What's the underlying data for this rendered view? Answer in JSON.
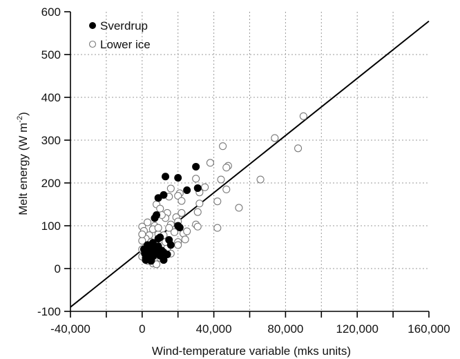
{
  "chart_data": {
    "type": "scatter",
    "xlabel": "Wind-temperature variable (mks units)",
    "ylabel": "Melt energy (W m",
    "ylabel_sup": "-2",
    "ylabel_close": ")",
    "xlim": [
      -40000,
      160000
    ],
    "ylim": [
      -100,
      600
    ],
    "xticks": [
      -40000,
      -20000,
      0,
      20000,
      40000,
      60000,
      80000,
      100000,
      120000,
      140000,
      160000
    ],
    "xtick_labels": [
      "-40,000",
      "",
      "0",
      "",
      "40,000",
      "",
      "80,000",
      "",
      "120,000",
      "",
      "160,000"
    ],
    "yticks": [
      -100,
      0,
      100,
      200,
      300,
      400,
      500,
      600
    ],
    "ytick_labels": [
      "-100",
      "0",
      "100",
      "200",
      "300",
      "400",
      "500",
      "600"
    ],
    "grid": true,
    "legend_position": "top-left",
    "fit_line": {
      "x": [
        -40000,
        160000
      ],
      "y": [
        -90,
        578
      ]
    },
    "series": [
      {
        "name": "Sverdrup",
        "marker": "filled-circle",
        "color": "#000000",
        "points": [
          [
            13000,
            215
          ],
          [
            30000,
            238
          ],
          [
            20000,
            212
          ],
          [
            9000,
            165
          ],
          [
            12000,
            172
          ],
          [
            31000,
            188
          ],
          [
            25000,
            183
          ],
          [
            8000,
            125
          ],
          [
            7000,
            118
          ],
          [
            20000,
            100
          ],
          [
            21000,
            96
          ],
          [
            10000,
            73
          ],
          [
            15000,
            67
          ],
          [
            9000,
            70
          ],
          [
            3000,
            55
          ],
          [
            5000,
            48
          ],
          [
            7000,
            45
          ],
          [
            4000,
            38
          ],
          [
            10000,
            30
          ],
          [
            12000,
            38
          ],
          [
            14000,
            33
          ],
          [
            2000,
            25
          ],
          [
            4000,
            22
          ],
          [
            2000,
            20
          ],
          [
            8000,
            35
          ],
          [
            11000,
            42
          ],
          [
            6000,
            28
          ],
          [
            16000,
            55
          ],
          [
            1000,
            45
          ],
          [
            3000,
            30
          ],
          [
            6000,
            60
          ],
          [
            9000,
            52
          ],
          [
            1500,
            35
          ],
          [
            12000,
            20
          ],
          [
            5000,
            18
          ]
        ]
      },
      {
        "name": "Lower ice",
        "marker": "open-circle",
        "color": "#000000",
        "points": [
          [
            90000,
            356
          ],
          [
            74000,
            305
          ],
          [
            87000,
            281
          ],
          [
            45000,
            286
          ],
          [
            48000,
            240
          ],
          [
            47000,
            236
          ],
          [
            38000,
            247
          ],
          [
            44000,
            208
          ],
          [
            66000,
            208
          ],
          [
            47000,
            185
          ],
          [
            35000,
            190
          ],
          [
            42000,
            157
          ],
          [
            54000,
            142
          ],
          [
            32000,
            178
          ],
          [
            30000,
            210
          ],
          [
            32000,
            152
          ],
          [
            31000,
            132
          ],
          [
            30000,
            103
          ],
          [
            31000,
            98
          ],
          [
            42000,
            95
          ],
          [
            21000,
            176
          ],
          [
            20000,
            170
          ],
          [
            22000,
            158
          ],
          [
            16000,
            187
          ],
          [
            8000,
            150
          ],
          [
            15000,
            168
          ],
          [
            10000,
            140
          ],
          [
            14000,
            130
          ],
          [
            13000,
            118
          ],
          [
            11000,
            125
          ],
          [
            19000,
            120
          ],
          [
            20000,
            110
          ],
          [
            22000,
            130
          ],
          [
            16000,
            103
          ],
          [
            7000,
            100
          ],
          [
            3000,
            108
          ],
          [
            0,
            98
          ],
          [
            1000,
            88
          ],
          [
            6000,
            92
          ],
          [
            9000,
            80
          ],
          [
            12000,
            78
          ],
          [
            18000,
            85
          ],
          [
            23000,
            82
          ],
          [
            25000,
            87
          ],
          [
            20000,
            62
          ],
          [
            4000,
            78
          ],
          [
            2000,
            70
          ],
          [
            0,
            65
          ],
          [
            5000,
            62
          ],
          [
            8000,
            55
          ],
          [
            11000,
            52
          ],
          [
            14000,
            48
          ],
          [
            2000,
            50
          ],
          [
            0,
            45
          ],
          [
            4000,
            40
          ],
          [
            7000,
            36
          ],
          [
            10000,
            25
          ],
          [
            12000,
            20
          ],
          [
            16000,
            35
          ],
          [
            1000,
            30
          ],
          [
            3000,
            18
          ],
          [
            6000,
            12
          ],
          [
            8000,
            10
          ],
          [
            0,
            28
          ],
          [
            20000,
            55
          ],
          [
            13000,
            62
          ],
          [
            9000,
            95
          ],
          [
            15000,
            95
          ],
          [
            24000,
            68
          ],
          [
            0,
            80
          ]
        ]
      }
    ]
  }
}
